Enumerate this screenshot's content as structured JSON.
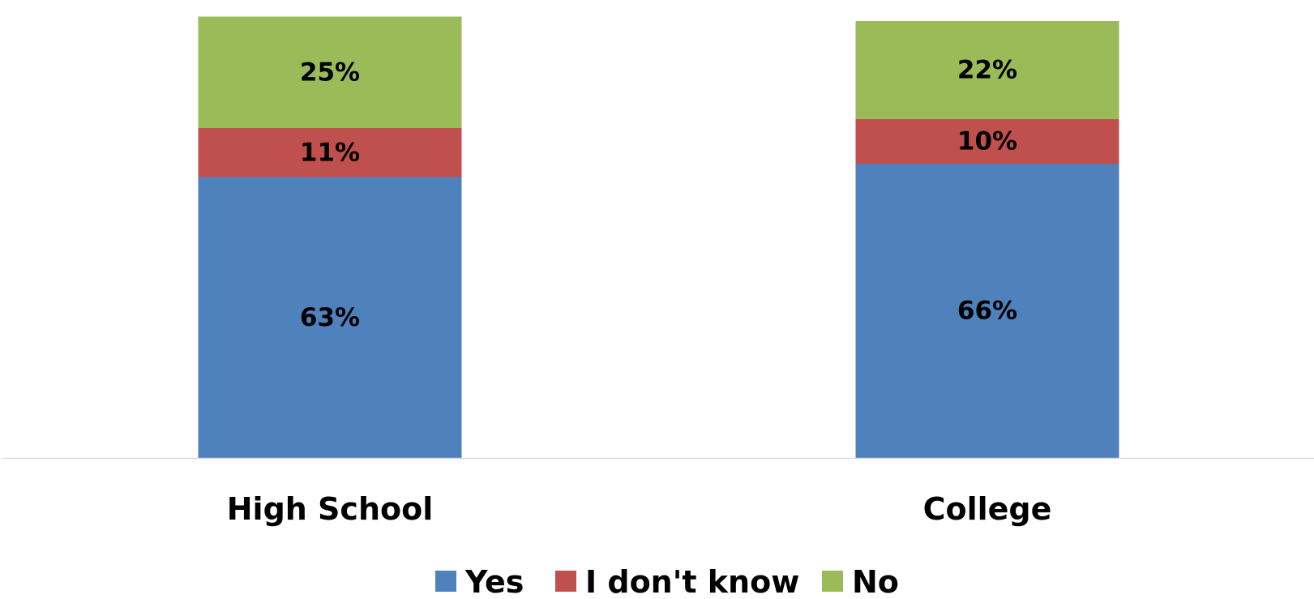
{
  "chart_data": {
    "type": "bar",
    "stacked": true,
    "categories": [
      "High School",
      "College"
    ],
    "series": [
      {
        "name": "Yes",
        "values": [
          63,
          66
        ],
        "labels": [
          "63%",
          "66%"
        ],
        "color": "#4F81BD"
      },
      {
        "name": "I don't know",
        "values": [
          11,
          10
        ],
        "labels": [
          "11%",
          "10%"
        ],
        "color": "#C0504D"
      },
      {
        "name": "No",
        "values": [
          25,
          22
        ],
        "labels": [
          "25%",
          "22%"
        ],
        "color": "#9BBB59"
      }
    ],
    "ylim": [
      0,
      100
    ],
    "grid": false,
    "legend": "bottom",
    "axis_line_color": "#D9D9D9"
  }
}
